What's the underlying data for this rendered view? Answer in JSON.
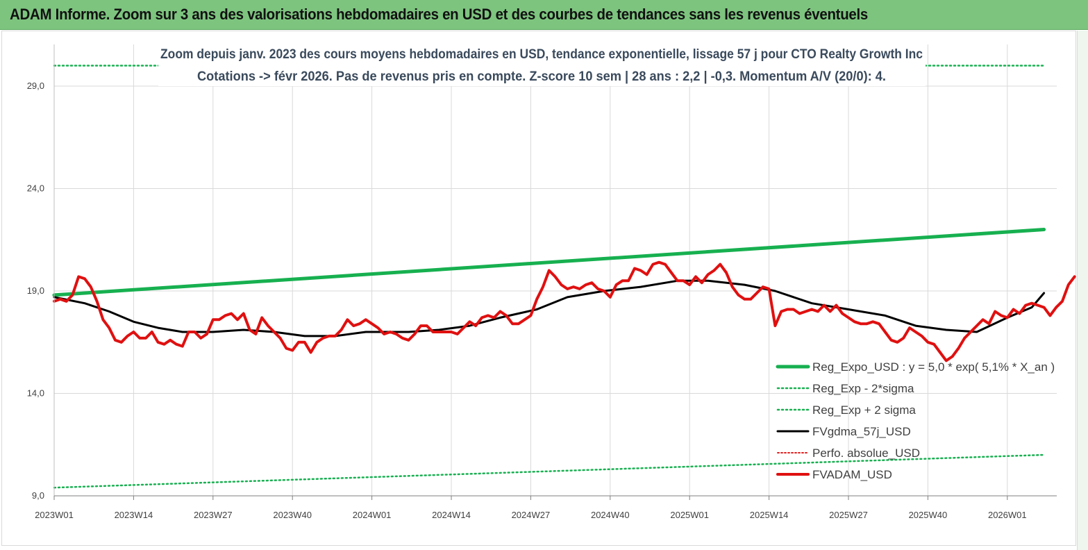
{
  "banner": {
    "title": "ADAM Informe. Zoom sur 3 ans des valorisations hebdomadaires en USD et des courbes de tendances sans les revenus éventuels"
  },
  "chart_data": {
    "type": "line",
    "title_lines": [
      "Zoom depuis janv. 2023 des cours moyens hebdomadaires en USD, tendance exponentielle, lissage 57 j pour CTO Realty Growth Inc",
      "Cotations -> févr 2026. Pas de revenus pris en compte. Z-score 10 sem  | 28 ans : 2,2 | -0,3. Momentum A/V (20/0): 4."
    ],
    "x_tick_labels": [
      "2023W01",
      "2023W14",
      "2023W27",
      "2023W40",
      "2024W01",
      "2024W14",
      "2024W27",
      "2024W40",
      "2025W01",
      "2025W14",
      "2025W27",
      "2025W40",
      "2026W01"
    ],
    "y_tick_labels": [
      "9,0",
      "14,0",
      "19,0",
      "24,0",
      "29,0"
    ],
    "ylim": [
      9,
      29
    ],
    "grid": true,
    "legend_position": "bottom-right",
    "colors": {
      "reg_expo": "#17b050",
      "sigma": "#17b050",
      "gdma": "#000000",
      "perfo": "#e02020",
      "fv": "#e01010"
    },
    "series": [
      {
        "name": "Reg_Expo_USD : y = 5,0 * exp( 5,1% *  X_an )",
        "style": "solid-thick",
        "anchors": [
          [
            0,
            18.8
          ],
          [
            162,
            22.0
          ]
        ]
      },
      {
        "name": "Reg_Exp - 2*sigma",
        "style": "dotted",
        "anchors": [
          [
            0,
            9.4
          ],
          [
            162,
            11.0
          ]
        ]
      },
      {
        "name": "Reg_Exp + 2 sigma",
        "style": "dotted",
        "anchors": [
          [
            0,
            30.0
          ],
          [
            162,
            30.0
          ]
        ]
      },
      {
        "name": "FVgdma_57j_USD",
        "style": "solid",
        "anchors": [
          [
            0,
            18.7
          ],
          [
            5,
            18.4
          ],
          [
            9,
            18.0
          ],
          [
            13,
            17.5
          ],
          [
            17,
            17.2
          ],
          [
            21,
            17.0
          ],
          [
            26,
            17.0
          ],
          [
            31,
            17.1
          ],
          [
            36,
            17.0
          ],
          [
            41,
            16.8
          ],
          [
            46,
            16.8
          ],
          [
            51,
            17.0
          ],
          [
            58,
            17.0
          ],
          [
            63,
            17.1
          ],
          [
            68,
            17.3
          ],
          [
            73,
            17.7
          ],
          [
            79,
            18.1
          ],
          [
            84,
            18.7
          ],
          [
            90,
            19.0
          ],
          [
            96,
            19.2
          ],
          [
            102,
            19.5
          ],
          [
            107,
            19.5
          ],
          [
            113,
            19.3
          ],
          [
            118,
            19.0
          ],
          [
            124,
            18.4
          ],
          [
            130,
            18.1
          ],
          [
            136,
            17.8
          ],
          [
            141,
            17.3
          ],
          [
            146,
            17.1
          ],
          [
            151,
            17.0
          ],
          [
            156,
            17.7
          ],
          [
            160,
            18.2
          ],
          [
            162,
            18.9
          ]
        ]
      },
      {
        "name": "Perfo. absolue_USD",
        "style": "dotted",
        "anchors": []
      },
      {
        "name": "FVADAM_USD",
        "style": "solid-thick",
        "anchors": [
          [
            0,
            18.5
          ],
          [
            1,
            18.6
          ],
          [
            2,
            18.5
          ],
          [
            3,
            18.8
          ],
          [
            4,
            19.7
          ],
          [
            5,
            19.6
          ],
          [
            6,
            19.2
          ],
          [
            7,
            18.5
          ],
          [
            8,
            17.6
          ],
          [
            9,
            17.2
          ],
          [
            10,
            16.6
          ],
          [
            11,
            16.5
          ],
          [
            12,
            16.8
          ],
          [
            13,
            17.0
          ],
          [
            14,
            16.7
          ],
          [
            15,
            16.7
          ],
          [
            16,
            17.0
          ],
          [
            17,
            16.5
          ],
          [
            18,
            16.4
          ],
          [
            19,
            16.6
          ],
          [
            20,
            16.4
          ],
          [
            21,
            16.3
          ],
          [
            22,
            17.0
          ],
          [
            23,
            17.0
          ],
          [
            24,
            16.7
          ],
          [
            25,
            16.9
          ],
          [
            26,
            17.6
          ],
          [
            27,
            17.6
          ],
          [
            28,
            17.8
          ],
          [
            29,
            17.9
          ],
          [
            30,
            17.6
          ],
          [
            31,
            17.9
          ],
          [
            32,
            17.1
          ],
          [
            33,
            16.9
          ],
          [
            34,
            17.7
          ],
          [
            35,
            17.3
          ],
          [
            36,
            17.0
          ],
          [
            37,
            16.7
          ],
          [
            38,
            16.2
          ],
          [
            39,
            16.1
          ],
          [
            40,
            16.5
          ],
          [
            41,
            16.5
          ],
          [
            42,
            16.0
          ],
          [
            43,
            16.5
          ],
          [
            44,
            16.7
          ],
          [
            45,
            16.8
          ],
          [
            46,
            16.8
          ],
          [
            47,
            17.1
          ],
          [
            48,
            17.6
          ],
          [
            49,
            17.3
          ],
          [
            50,
            17.4
          ],
          [
            51,
            17.6
          ],
          [
            52,
            17.4
          ],
          [
            53,
            17.2
          ],
          [
            54,
            16.9
          ],
          [
            55,
            17.0
          ],
          [
            56,
            16.9
          ],
          [
            57,
            16.7
          ],
          [
            58,
            16.6
          ],
          [
            59,
            16.9
          ],
          [
            60,
            17.3
          ],
          [
            61,
            17.3
          ],
          [
            62,
            17.0
          ],
          [
            63,
            17.0
          ],
          [
            64,
            17.0
          ],
          [
            65,
            17.0
          ],
          [
            66,
            16.9
          ],
          [
            67,
            17.2
          ],
          [
            68,
            17.5
          ],
          [
            69,
            17.3
          ],
          [
            70,
            17.7
          ],
          [
            71,
            17.8
          ],
          [
            72,
            17.7
          ],
          [
            73,
            18.0
          ],
          [
            74,
            17.8
          ],
          [
            75,
            17.4
          ],
          [
            76,
            17.4
          ],
          [
            77,
            17.6
          ],
          [
            78,
            17.8
          ],
          [
            79,
            18.6
          ],
          [
            80,
            19.2
          ],
          [
            81,
            20.0
          ],
          [
            82,
            19.7
          ],
          [
            83,
            19.3
          ],
          [
            84,
            19.1
          ],
          [
            85,
            19.2
          ],
          [
            86,
            19.1
          ],
          [
            87,
            19.3
          ],
          [
            88,
            19.4
          ],
          [
            89,
            19.1
          ],
          [
            90,
            19.0
          ],
          [
            91,
            18.7
          ],
          [
            92,
            19.3
          ],
          [
            93,
            19.5
          ],
          [
            94,
            19.5
          ],
          [
            95,
            20.1
          ],
          [
            96,
            20.0
          ],
          [
            97,
            19.8
          ],
          [
            98,
            20.3
          ],
          [
            99,
            20.4
          ],
          [
            100,
            20.3
          ],
          [
            101,
            19.9
          ],
          [
            102,
            19.5
          ],
          [
            103,
            19.5
          ],
          [
            104,
            19.3
          ],
          [
            105,
            19.7
          ],
          [
            106,
            19.4
          ],
          [
            107,
            19.8
          ],
          [
            108,
            20.0
          ],
          [
            109,
            20.3
          ],
          [
            110,
            19.9
          ],
          [
            111,
            19.2
          ],
          [
            112,
            18.8
          ],
          [
            113,
            18.6
          ],
          [
            114,
            18.6
          ],
          [
            115,
            18.9
          ],
          [
            116,
            19.2
          ],
          [
            117,
            19.1
          ],
          [
            118,
            17.3
          ],
          [
            119,
            18.0
          ],
          [
            120,
            18.1
          ],
          [
            121,
            18.1
          ],
          [
            122,
            17.9
          ],
          [
            123,
            18.0
          ],
          [
            124,
            18.1
          ],
          [
            125,
            18.0
          ],
          [
            126,
            18.3
          ],
          [
            127,
            18.0
          ],
          [
            128,
            18.3
          ],
          [
            129,
            17.9
          ],
          [
            130,
            17.7
          ],
          [
            131,
            17.5
          ],
          [
            132,
            17.4
          ],
          [
            133,
            17.4
          ],
          [
            134,
            17.5
          ],
          [
            135,
            17.4
          ],
          [
            136,
            17.0
          ],
          [
            137,
            16.6
          ],
          [
            138,
            16.5
          ],
          [
            139,
            16.7
          ],
          [
            140,
            17.2
          ],
          [
            141,
            17.0
          ],
          [
            142,
            16.8
          ],
          [
            143,
            16.5
          ],
          [
            144,
            16.4
          ],
          [
            145,
            16.0
          ],
          [
            146,
            15.6
          ],
          [
            147,
            15.8
          ],
          [
            148,
            16.2
          ],
          [
            149,
            16.7
          ],
          [
            150,
            17.0
          ],
          [
            151,
            17.3
          ],
          [
            152,
            17.6
          ],
          [
            153,
            17.4
          ],
          [
            154,
            18.0
          ],
          [
            155,
            17.8
          ],
          [
            156,
            17.7
          ],
          [
            157,
            18.1
          ],
          [
            158,
            17.9
          ],
          [
            159,
            18.3
          ],
          [
            160,
            18.4
          ],
          [
            161,
            18.3
          ],
          [
            162,
            18.2
          ],
          [
            163,
            17.8
          ],
          [
            164,
            18.2
          ],
          [
            165,
            18.5
          ],
          [
            166,
            19.3
          ],
          [
            167,
            19.7
          ]
        ]
      }
    ]
  }
}
